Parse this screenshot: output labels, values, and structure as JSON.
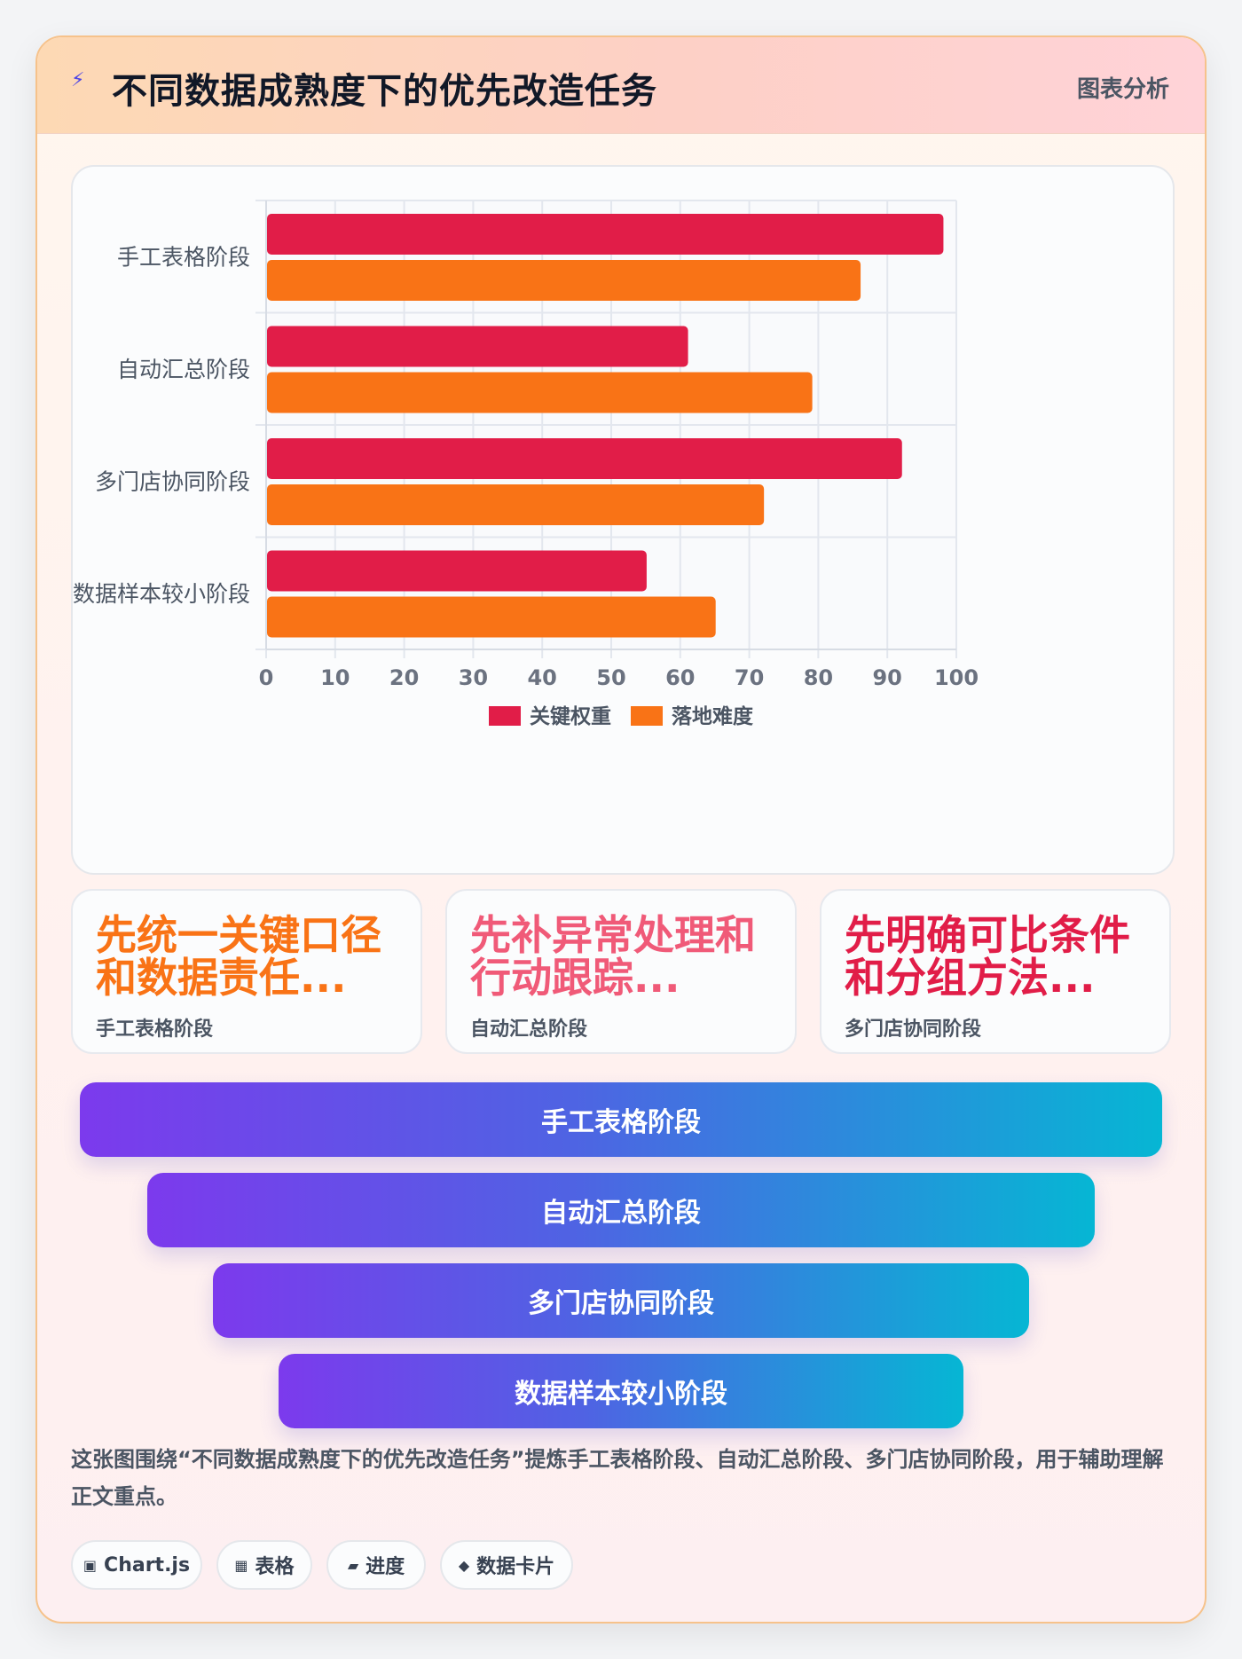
{
  "header": {
    "title": "不同数据成熟度下的优先改造任务",
    "tag": "图表分析"
  },
  "chart_data": {
    "type": "bar",
    "orientation": "horizontal",
    "categories": [
      "手工表格阶段",
      "自动汇总阶段",
      "多门店协同阶段",
      "数据样本较小阶段"
    ],
    "series": [
      {
        "name": "关键权重",
        "color": "#e11d48",
        "values": [
          98,
          61,
          92,
          55
        ]
      },
      {
        "name": "落地难度",
        "color": "#f97316",
        "values": [
          86,
          79,
          72,
          65
        ]
      }
    ],
    "xlim": [
      0,
      100
    ],
    "xticks": [
      0,
      10,
      20,
      30,
      40,
      50,
      60,
      70,
      80,
      90,
      100
    ],
    "grid": true,
    "legend": "bottom"
  },
  "tips": [
    {
      "headline": "先统一关键口径和数据责任...",
      "stage": "手工表格阶段",
      "color": "#f97316"
    },
    {
      "headline": "先补异常处理和行动跟踪...",
      "stage": "自动汇总阶段",
      "color": "#f05a78"
    },
    {
      "headline": "先明确可比条件和分组方法...",
      "stage": "多门店协同阶段",
      "color": "#e11d48"
    }
  ],
  "funnel": [
    "手工表格阶段",
    "自动汇总阶段",
    "多门店协同阶段",
    "数据样本较小阶段"
  ],
  "summary": "这张图围绕“不同数据成熟度下的优先改造任务”提炼手工表格阶段、自动汇总阶段、多门店协同阶段，用于辅助理解正文重点。",
  "chips": [
    {
      "icon": "▣",
      "label": "Chart.js"
    },
    {
      "icon": "▦",
      "label": "表格"
    },
    {
      "icon": "▰",
      "label": "进度"
    },
    {
      "icon": "◆",
      "label": "数据卡片"
    }
  ]
}
